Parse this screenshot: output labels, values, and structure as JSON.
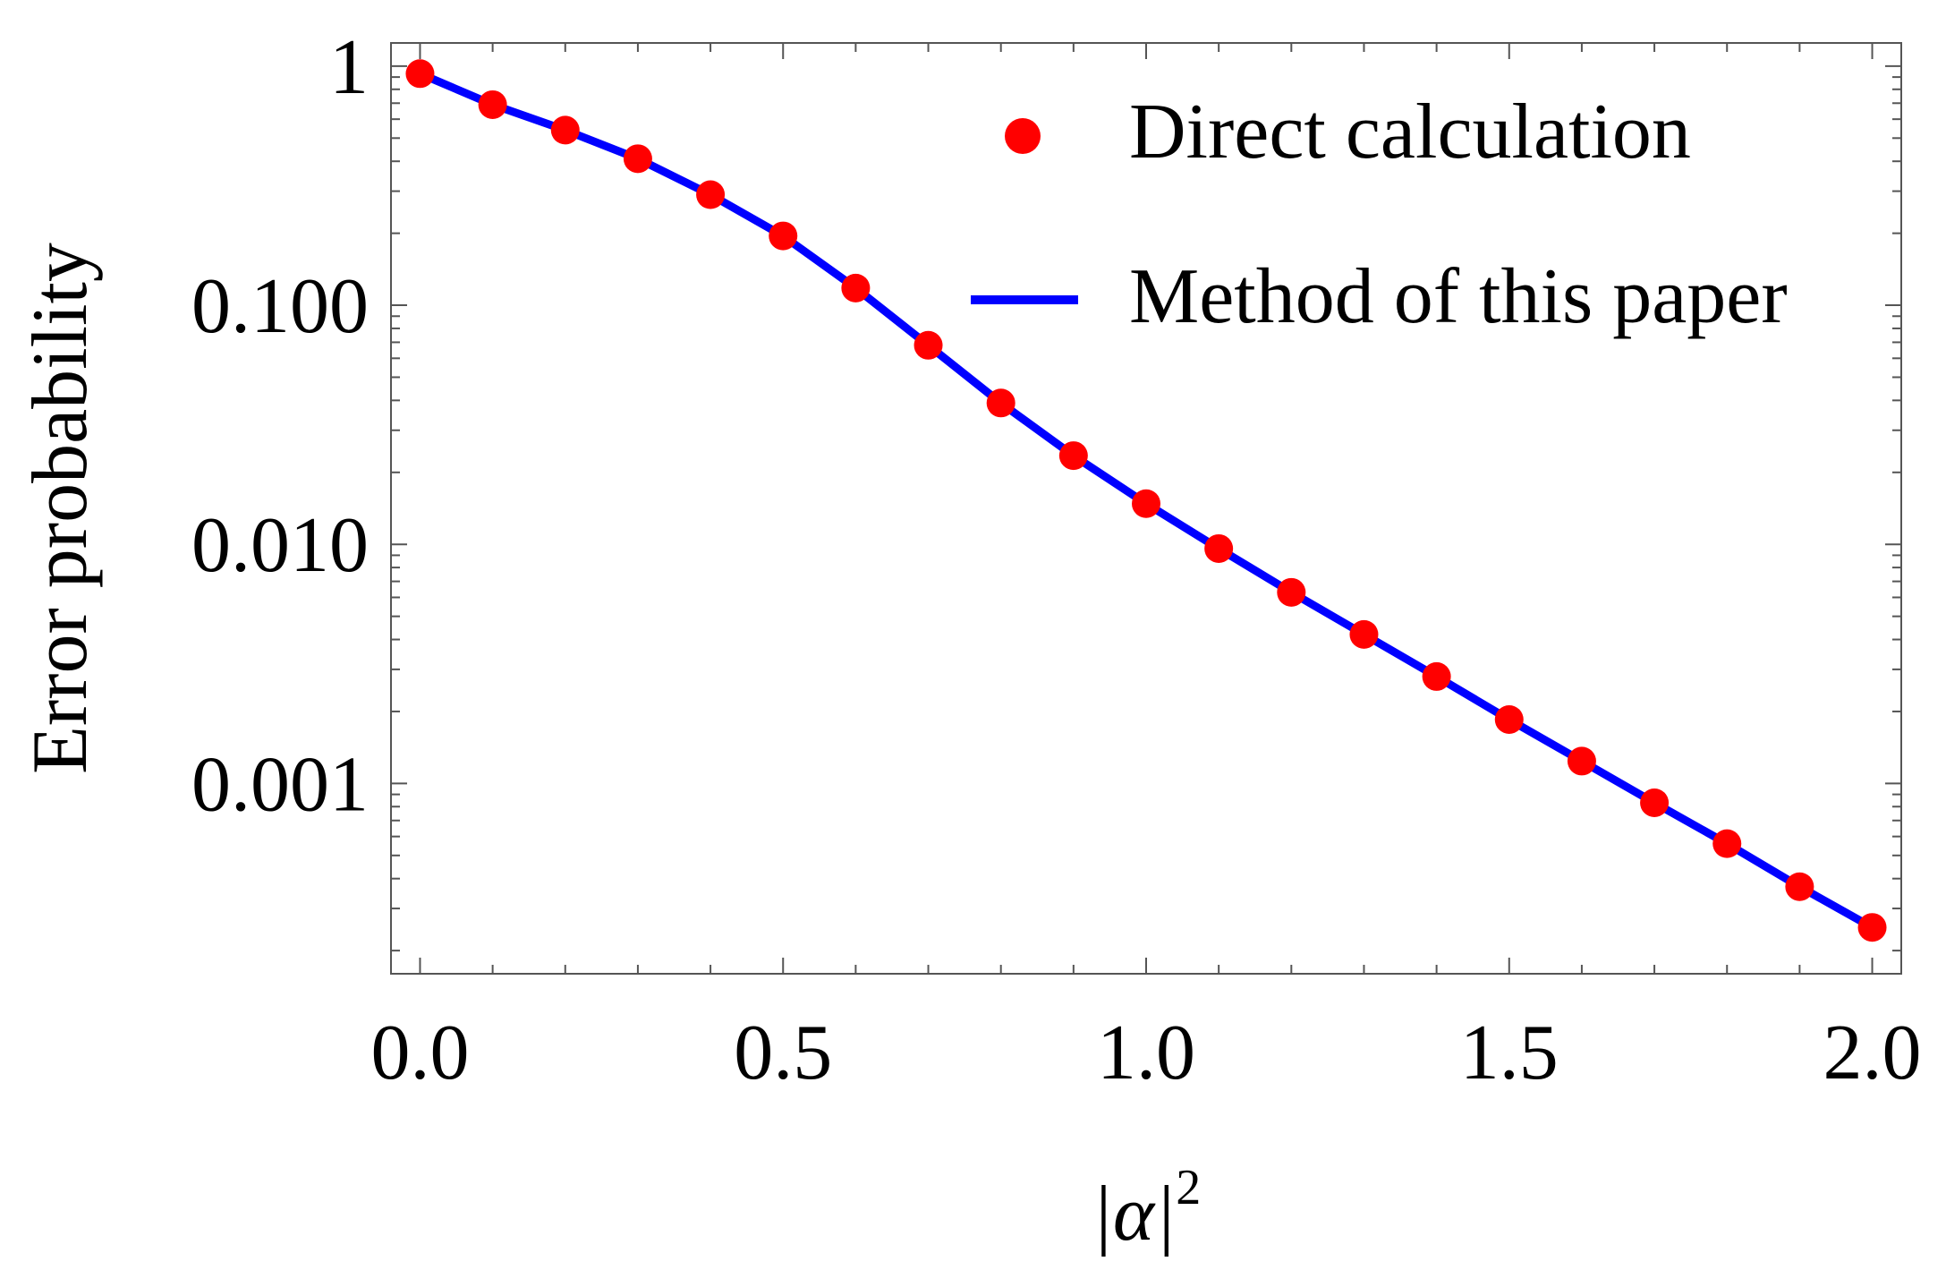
{
  "chart_data": {
    "type": "line",
    "title": "",
    "xlabel": "|α|²",
    "xlabel_base": "|α|",
    "xlabel_sup": "2",
    "ylabel": "Error probability",
    "xlim": [
      -0.04,
      2.04
    ],
    "ylim": [
      0.00016,
      1.25
    ],
    "yscale": "log",
    "x_ticks": [
      0.0,
      0.5,
      1.0,
      1.5,
      2.0
    ],
    "x_tick_labels": [
      "0.0",
      "0.5",
      "1.0",
      "1.5",
      "2.0"
    ],
    "y_ticks": [
      1,
      0.1,
      0.01,
      0.001
    ],
    "y_tick_labels": [
      "1",
      "0.100",
      "0.010",
      "0.001"
    ],
    "grid": false,
    "legend_position": "top-right",
    "series": [
      {
        "name": "Direct calculation",
        "kind": "scatter",
        "color": "#ff0000",
        "x": [
          0.0,
          0.1,
          0.2,
          0.3,
          0.4,
          0.5,
          0.6,
          0.7,
          0.8,
          0.9,
          1.0,
          1.1,
          1.2,
          1.3,
          1.4,
          1.5,
          1.6,
          1.7,
          1.8,
          1.9,
          2.0
        ],
        "y": [
          0.93,
          0.69,
          0.54,
          0.41,
          0.29,
          0.195,
          0.118,
          0.068,
          0.039,
          0.0235,
          0.0148,
          0.0096,
          0.0063,
          0.0042,
          0.0028,
          0.00185,
          0.00124,
          0.00083,
          0.00056,
          0.00037,
          0.00025
        ]
      },
      {
        "name": "Method of this paper",
        "kind": "line",
        "color": "#0000ff",
        "x": [
          0.0,
          0.1,
          0.2,
          0.3,
          0.4,
          0.5,
          0.6,
          0.7,
          0.8,
          0.9,
          1.0,
          1.1,
          1.2,
          1.3,
          1.4,
          1.5,
          1.6,
          1.7,
          1.8,
          1.9,
          2.0
        ],
        "y": [
          0.93,
          0.69,
          0.54,
          0.41,
          0.29,
          0.195,
          0.118,
          0.068,
          0.039,
          0.0235,
          0.0148,
          0.0096,
          0.0063,
          0.0042,
          0.0028,
          0.00185,
          0.00124,
          0.00083,
          0.00056,
          0.00037,
          0.00025
        ]
      }
    ]
  }
}
